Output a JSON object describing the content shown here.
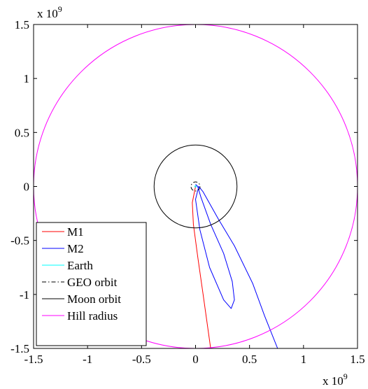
{
  "chart_data": {
    "type": "line",
    "title": "",
    "xlabel": "",
    "ylabel": "",
    "xlim": [
      -1500000000.0,
      1500000000.0
    ],
    "ylim": [
      -1500000000.0,
      1500000000.0
    ],
    "x_ticks": [
      -1.5,
      -1,
      -0.5,
      0,
      0.5,
      1,
      1.5
    ],
    "y_ticks": [
      -1.5,
      -1,
      -0.5,
      0,
      0.5,
      1,
      1.5
    ],
    "x_tick_labels": [
      "-1.5",
      "-1",
      "-0.5",
      "0",
      "0.5",
      "1",
      "1.5"
    ],
    "y_tick_labels": [
      "-1.5",
      "-1",
      "-0.5",
      "0",
      "0.5",
      "1",
      "1.5"
    ],
    "x_multiplier": {
      "base": "x 10",
      "exp": "9"
    },
    "y_multiplier": {
      "base": "x 10",
      "exp": "9"
    },
    "grid": false,
    "legend_position": "bottom-left",
    "series": [
      {
        "name": "M1",
        "color": "#ff0000",
        "style": "solid",
        "points": [
          [
            0,
            0
          ],
          [
            -10000000.0,
            -50000000.0
          ],
          [
            -30000000.0,
            -150000000.0
          ],
          [
            -20000000.0,
            -350000000.0
          ],
          [
            20000000.0,
            -650000000.0
          ],
          [
            70000000.0,
            -1000000000.0
          ],
          [
            140000000.0,
            -1500000000.0
          ]
        ]
      },
      {
        "name": "M2",
        "color": "#0000ff",
        "style": "solid",
        "points": [
          [
            0,
            20000000.0
          ],
          [
            20000000.0,
            0.0
          ],
          [
            50000000.0,
            -100000000.0
          ],
          [
            140000000.0,
            -350000000.0
          ],
          [
            260000000.0,
            -620000000.0
          ],
          [
            340000000.0,
            -880000000.0
          ],
          [
            360000000.0,
            -1050000000.0
          ],
          [
            330000000.0,
            -1130000000.0
          ],
          [
            260000000.0,
            -1050000000.0
          ],
          [
            130000000.0,
            -750000000.0
          ],
          [
            40000000.0,
            -400000000.0
          ],
          [
            0.0,
            -120000000.0
          ],
          [
            30000000.0,
            0.0
          ],
          [
            70000000.0,
            -50000000.0
          ],
          [
            210000000.0,
            -300000000.0
          ],
          [
            360000000.0,
            -550000000.0
          ],
          [
            530000000.0,
            -900000000.0
          ],
          [
            640000000.0,
            -1200000000.0
          ],
          [
            760000000.0,
            -1500000000.0
          ]
        ]
      },
      {
        "name": "Earth",
        "color": "#00ffff",
        "style": "solid",
        "circle_radius": 6400000.0
      },
      {
        "name": "GEO orbit",
        "color": "#000000",
        "style": "dash-dot",
        "circle_radius": 42000000.0
      },
      {
        "name": "Moon orbit",
        "color": "#000000",
        "style": "solid",
        "circle_radius": 384000000.0
      },
      {
        "name": "Hill radius",
        "color": "#ff00ff",
        "style": "solid",
        "circle_radius": 1500000000.0
      }
    ]
  }
}
